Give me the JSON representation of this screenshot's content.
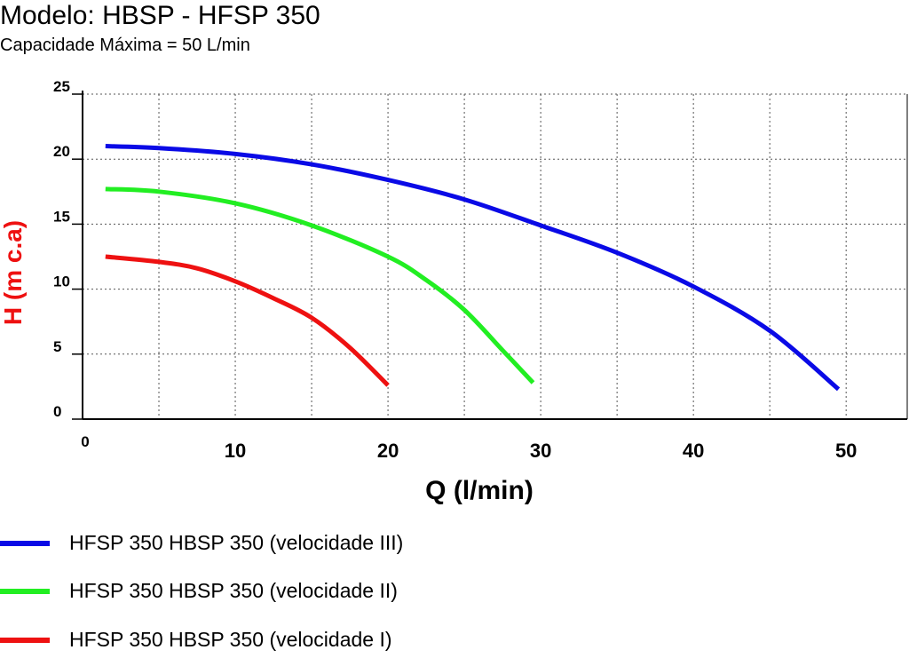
{
  "header": {
    "title": "Modelo: HBSP - HFSP 350",
    "subtitle": "Capacidade Máxima = 50 L/min"
  },
  "chart_data": {
    "type": "line",
    "xlabel": "Q (l/min)",
    "ylabel": "H (m c.a)",
    "xlim": [
      0,
      54
    ],
    "ylim": [
      0,
      25
    ],
    "x_ticks": [
      {
        "value": 0,
        "label": "0"
      },
      {
        "value": 10,
        "label": "10"
      },
      {
        "value": 20,
        "label": "20"
      },
      {
        "value": 30,
        "label": "30"
      },
      {
        "value": 40,
        "label": "40"
      },
      {
        "value": 50,
        "label": "50"
      }
    ],
    "y_ticks": [
      {
        "value": 0,
        "label": "0"
      },
      {
        "value": 5,
        "label": "5"
      },
      {
        "value": 10,
        "label": "10"
      },
      {
        "value": 15,
        "label": "15"
      },
      {
        "value": 20,
        "label": "20"
      },
      {
        "value": 25,
        "label": "25"
      }
    ],
    "grid": true,
    "legend_position": "bottom-left",
    "series": [
      {
        "name": "HFSP 350 HBSP 350 (velocidade III)",
        "color": "#0a0ae6",
        "x": [
          1.5,
          5,
          10,
          15,
          20,
          25,
          30,
          35,
          40,
          45,
          49.5
        ],
        "y": [
          21.0,
          20.85,
          20.4,
          19.6,
          18.4,
          16.9,
          14.9,
          12.8,
          10.2,
          6.8,
          2.3
        ]
      },
      {
        "name": "HFSP 350 HBSP 350 (velocidade II)",
        "color": "#22ee22",
        "x": [
          1.5,
          5,
          10,
          15,
          20,
          22.5,
          25,
          27.5,
          29.5
        ],
        "y": [
          17.7,
          17.5,
          16.6,
          14.9,
          12.5,
          10.7,
          8.4,
          5.3,
          2.8
        ]
      },
      {
        "name": "HFSP 350 HBSP 350 (velocidade I)",
        "color": "#ee1111",
        "x": [
          1.5,
          5,
          7.5,
          10,
          12.5,
          15,
          17.5,
          20
        ],
        "y": [
          12.5,
          12.1,
          11.6,
          10.6,
          9.3,
          7.8,
          5.5,
          2.6
        ]
      }
    ]
  }
}
